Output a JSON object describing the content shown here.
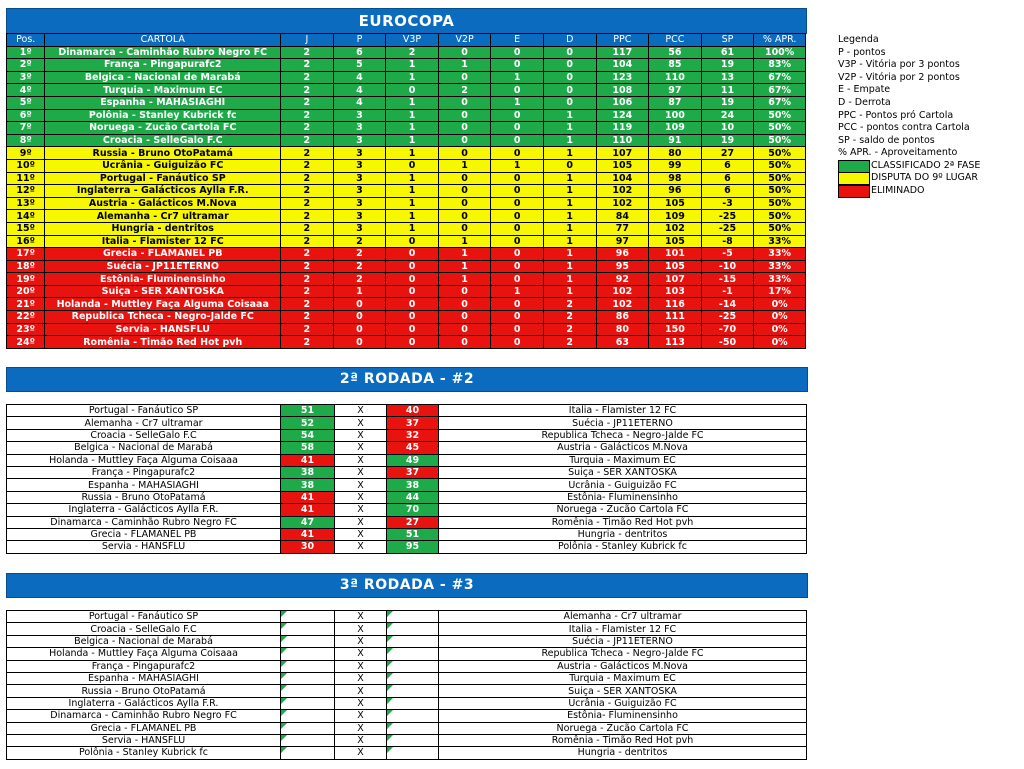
{
  "title": "EUROCOPA",
  "headers": [
    "Pos.",
    "CARTOLA",
    "J",
    "P",
    "V3P",
    "V2P",
    "E",
    "D",
    "PPC",
    "PCC",
    "SP",
    "% APR."
  ],
  "standings": [
    {
      "pos": "1º",
      "team": "Dinamarca - Caminhão Rubro Negro FC",
      "j": "2",
      "p": "6",
      "v3p": "2",
      "v2p": "0",
      "e": "0",
      "d": "0",
      "ppc": "117",
      "pcc": "56",
      "sp": "61",
      "apr": "100%",
      "zone": "green"
    },
    {
      "pos": "2º",
      "team": "França - Pingapurafc2",
      "j": "2",
      "p": "5",
      "v3p": "1",
      "v2p": "1",
      "e": "0",
      "d": "0",
      "ppc": "104",
      "pcc": "85",
      "sp": "19",
      "apr": "83%",
      "zone": "green"
    },
    {
      "pos": "3º",
      "team": "Belgica - Nacional de Marabá",
      "j": "2",
      "p": "4",
      "v3p": "1",
      "v2p": "0",
      "e": "1",
      "d": "0",
      "ppc": "123",
      "pcc": "110",
      "sp": "13",
      "apr": "67%",
      "zone": "green"
    },
    {
      "pos": "4º",
      "team": "Turquia - Maximum EC",
      "j": "2",
      "p": "4",
      "v3p": "0",
      "v2p": "2",
      "e": "0",
      "d": "0",
      "ppc": "108",
      "pcc": "97",
      "sp": "11",
      "apr": "67%",
      "zone": "green"
    },
    {
      "pos": "5º",
      "team": "Espanha - MAHASIAGHI",
      "j": "2",
      "p": "4",
      "v3p": "1",
      "v2p": "0",
      "e": "1",
      "d": "0",
      "ppc": "106",
      "pcc": "87",
      "sp": "19",
      "apr": "67%",
      "zone": "green"
    },
    {
      "pos": "6º",
      "team": "Polônia - Stanley Kubrick fc",
      "j": "2",
      "p": "3",
      "v3p": "1",
      "v2p": "0",
      "e": "0",
      "d": "1",
      "ppc": "124",
      "pcc": "100",
      "sp": "24",
      "apr": "50%",
      "zone": "green"
    },
    {
      "pos": "7º",
      "team": "Noruega - Zucão Cartola FC",
      "j": "2",
      "p": "3",
      "v3p": "1",
      "v2p": "0",
      "e": "0",
      "d": "1",
      "ppc": "119",
      "pcc": "109",
      "sp": "10",
      "apr": "50%",
      "zone": "green"
    },
    {
      "pos": "8º",
      "team": "Croacia - SelleGalo F.C",
      "j": "2",
      "p": "3",
      "v3p": "1",
      "v2p": "0",
      "e": "0",
      "d": "1",
      "ppc": "110",
      "pcc": "91",
      "sp": "19",
      "apr": "50%",
      "zone": "green"
    },
    {
      "pos": "9º",
      "team": "Russia - Bruno OtoPatamá",
      "j": "2",
      "p": "3",
      "v3p": "1",
      "v2p": "0",
      "e": "0",
      "d": "1",
      "ppc": "107",
      "pcc": "80",
      "sp": "27",
      "apr": "50%",
      "zone": "yellow"
    },
    {
      "pos": "10º",
      "team": "Ucrânia - Guiguizão FC",
      "j": "2",
      "p": "3",
      "v3p": "0",
      "v2p": "1",
      "e": "1",
      "d": "0",
      "ppc": "105",
      "pcc": "99",
      "sp": "6",
      "apr": "50%",
      "zone": "yellow"
    },
    {
      "pos": "11º",
      "team": "Portugal - Fanáutico SP",
      "j": "2",
      "p": "3",
      "v3p": "1",
      "v2p": "0",
      "e": "0",
      "d": "1",
      "ppc": "104",
      "pcc": "98",
      "sp": "6",
      "apr": "50%",
      "zone": "yellow"
    },
    {
      "pos": "12º",
      "team": "Inglaterra - Galácticos Aylla F.R.",
      "j": "2",
      "p": "3",
      "v3p": "1",
      "v2p": "0",
      "e": "0",
      "d": "1",
      "ppc": "102",
      "pcc": "96",
      "sp": "6",
      "apr": "50%",
      "zone": "yellow"
    },
    {
      "pos": "13º",
      "team": "Austria - Galácticos M.Nova",
      "j": "2",
      "p": "3",
      "v3p": "1",
      "v2p": "0",
      "e": "0",
      "d": "1",
      "ppc": "102",
      "pcc": "105",
      "sp": "-3",
      "apr": "50%",
      "zone": "yellow"
    },
    {
      "pos": "14º",
      "team": "Alemanha - Cr7 ultramar",
      "j": "2",
      "p": "3",
      "v3p": "1",
      "v2p": "0",
      "e": "0",
      "d": "1",
      "ppc": "84",
      "pcc": "109",
      "sp": "-25",
      "apr": "50%",
      "zone": "yellow"
    },
    {
      "pos": "15º",
      "team": "Hungria - dentritos",
      "j": "2",
      "p": "3",
      "v3p": "1",
      "v2p": "0",
      "e": "0",
      "d": "1",
      "ppc": "77",
      "pcc": "102",
      "sp": "-25",
      "apr": "50%",
      "zone": "yellow"
    },
    {
      "pos": "16º",
      "team": "Italia - Flamister 12 FC",
      "j": "2",
      "p": "2",
      "v3p": "0",
      "v2p": "1",
      "e": "0",
      "d": "1",
      "ppc": "97",
      "pcc": "105",
      "sp": "-8",
      "apr": "33%",
      "zone": "yellow"
    },
    {
      "pos": "17º",
      "team": "Grecia - FLAMANEL PB",
      "j": "2",
      "p": "2",
      "v3p": "0",
      "v2p": "1",
      "e": "0",
      "d": "1",
      "ppc": "96",
      "pcc": "101",
      "sp": "-5",
      "apr": "33%",
      "zone": "red"
    },
    {
      "pos": "18º",
      "team": "Suécia - JP11ETERNO",
      "j": "2",
      "p": "2",
      "v3p": "0",
      "v2p": "1",
      "e": "0",
      "d": "1",
      "ppc": "95",
      "pcc": "105",
      "sp": "-10",
      "apr": "33%",
      "zone": "red"
    },
    {
      "pos": "19º",
      "team": "Estônia- Fluminensinho",
      "j": "2",
      "p": "2",
      "v3p": "0",
      "v2p": "1",
      "e": "0",
      "d": "1",
      "ppc": "92",
      "pcc": "107",
      "sp": "-15",
      "apr": "33%",
      "zone": "red"
    },
    {
      "pos": "20º",
      "team": "Suiça - SER XANTOSKA",
      "j": "2",
      "p": "1",
      "v3p": "0",
      "v2p": "0",
      "e": "1",
      "d": "1",
      "ppc": "102",
      "pcc": "103",
      "sp": "-1",
      "apr": "17%",
      "zone": "red"
    },
    {
      "pos": "21º",
      "team": "Holanda - Muttley Faça Alguma Coisaaa",
      "j": "2",
      "p": "0",
      "v3p": "0",
      "v2p": "0",
      "e": "0",
      "d": "2",
      "ppc": "102",
      "pcc": "116",
      "sp": "-14",
      "apr": "0%",
      "zone": "red"
    },
    {
      "pos": "22º",
      "team": "Republica Tcheca - Negro-Jalde FC",
      "j": "2",
      "p": "0",
      "v3p": "0",
      "v2p": "0",
      "e": "0",
      "d": "2",
      "ppc": "86",
      "pcc": "111",
      "sp": "-25",
      "apr": "0%",
      "zone": "red"
    },
    {
      "pos": "23º",
      "team": "Servia - HANSFLU",
      "j": "2",
      "p": "0",
      "v3p": "0",
      "v2p": "0",
      "e": "0",
      "d": "2",
      "ppc": "80",
      "pcc": "150",
      "sp": "-70",
      "apr": "0%",
      "zone": "red"
    },
    {
      "pos": "24º",
      "team": "Romênia - Timão Red Hot pvh",
      "j": "2",
      "p": "0",
      "v3p": "0",
      "v2p": "0",
      "e": "0",
      "d": "2",
      "ppc": "63",
      "pcc": "113",
      "sp": "-50",
      "apr": "0%",
      "zone": "red"
    }
  ],
  "legend": {
    "title": "Legenda",
    "items": [
      "P - pontos",
      "V3P - Vitória por 3 pontos",
      "V2P - Vitória por 2 pontos",
      "E - Empate",
      "D - Derrota",
      "PPC - Pontos pró Cartola",
      "PCC - pontos contra Cartola",
      "SP - saldo de pontos",
      "% APR. - Aproveitamento"
    ],
    "swatches": [
      {
        "label": "CLASSIFICADO 2ª FASE",
        "color": "#1faa4a"
      },
      {
        "label": "DISPUTA DO 9º LUGAR",
        "color": "#f7f702"
      },
      {
        "label": "ELIMINADO",
        "color": "#e8120f"
      }
    ]
  },
  "round2": {
    "title": "2ª RODADA - #2",
    "matches": [
      {
        "home": "Portugal - Fanáutico SP",
        "hs": "51",
        "as": "40",
        "away": "Italia - Flamister 12 FC"
      },
      {
        "home": "Alemanha - Cr7 ultramar",
        "hs": "52",
        "as": "37",
        "away": "Suécia - JP11ETERNO"
      },
      {
        "home": "Croacia - SelleGalo F.C",
        "hs": "54",
        "as": "32",
        "away": "Republica Tcheca - Negro-Jalde FC"
      },
      {
        "home": "Belgica - Nacional de Marabá",
        "hs": "58",
        "as": "45",
        "away": "Austria - Galácticos M.Nova"
      },
      {
        "home": "Holanda - Muttley Faça Alguma Coisaaa",
        "hs": "41",
        "as": "49",
        "away": "Turquia - Maximum EC"
      },
      {
        "home": "França - Pingapurafc2",
        "hs": "38",
        "as": "37",
        "away": "Suiça - SER XANTOSKA"
      },
      {
        "home": "Espanha - MAHASIAGHI",
        "hs": "38",
        "as": "38",
        "away": "Ucrânia - Guiguizão FC"
      },
      {
        "home": "Russia - Bruno OtoPatamá",
        "hs": "41",
        "as": "44",
        "away": "Estônia- Fluminensinho"
      },
      {
        "home": "Inglaterra - Galácticos Aylla F.R.",
        "hs": "41",
        "as": "70",
        "away": "Noruega - Zucão Cartola FC"
      },
      {
        "home": "Dinamarca - Caminhão Rubro Negro FC",
        "hs": "47",
        "as": "27",
        "away": "Romênia - Timão Red Hot pvh"
      },
      {
        "home": "Grecia - FLAMANEL PB",
        "hs": "41",
        "as": "51",
        "away": "Hungria - dentritos"
      },
      {
        "home": "Servia - HANSFLU",
        "hs": "30",
        "as": "95",
        "away": "Polônia - Stanley Kubrick fc"
      }
    ]
  },
  "round3": {
    "title": "3ª RODADA - #3",
    "matches": [
      {
        "home": "Portugal - Fanáutico SP",
        "hs": "",
        "as": "",
        "away": "Alemanha - Cr7 ultramar"
      },
      {
        "home": "Croacia - SelleGalo F.C",
        "hs": "",
        "as": "",
        "away": "Italia - Flamister 12 FC"
      },
      {
        "home": "Belgica - Nacional de Marabá",
        "hs": "",
        "as": "",
        "away": "Suécia - JP11ETERNO"
      },
      {
        "home": "Holanda - Muttley Faça Alguma Coisaaa",
        "hs": "",
        "as": "",
        "away": "Republica Tcheca - Negro-Jalde FC"
      },
      {
        "home": "França - Pingapurafc2",
        "hs": "",
        "as": "",
        "away": "Austria - Galácticos M.Nova"
      },
      {
        "home": "Espanha - MAHASIAGHI",
        "hs": "",
        "as": "",
        "away": "Turquia - Maximum EC"
      },
      {
        "home": "Russia - Bruno OtoPatamá",
        "hs": "",
        "as": "",
        "away": "Suiça - SER XANTOSKA"
      },
      {
        "home": "Inglaterra - Galácticos Aylla F.R.",
        "hs": "",
        "as": "",
        "away": "Ucrânia - Guiguizão FC"
      },
      {
        "home": "Dinamarca - Caminhão Rubro Negro FC",
        "hs": "",
        "as": "",
        "away": "Estônia- Fluminensinho"
      },
      {
        "home": "Grecia - FLAMANEL PB",
        "hs": "",
        "as": "",
        "away": "Noruega - Zucão Cartola FC"
      },
      {
        "home": "Servia - HANSFLU",
        "hs": "",
        "as": "",
        "away": "Romênia - Timão Red Hot pvh"
      },
      {
        "home": "Polônia - Stanley Kubrick fc",
        "hs": "",
        "as": "",
        "away": "Hungria - dentritos"
      }
    ]
  },
  "vs_symbol": "X"
}
